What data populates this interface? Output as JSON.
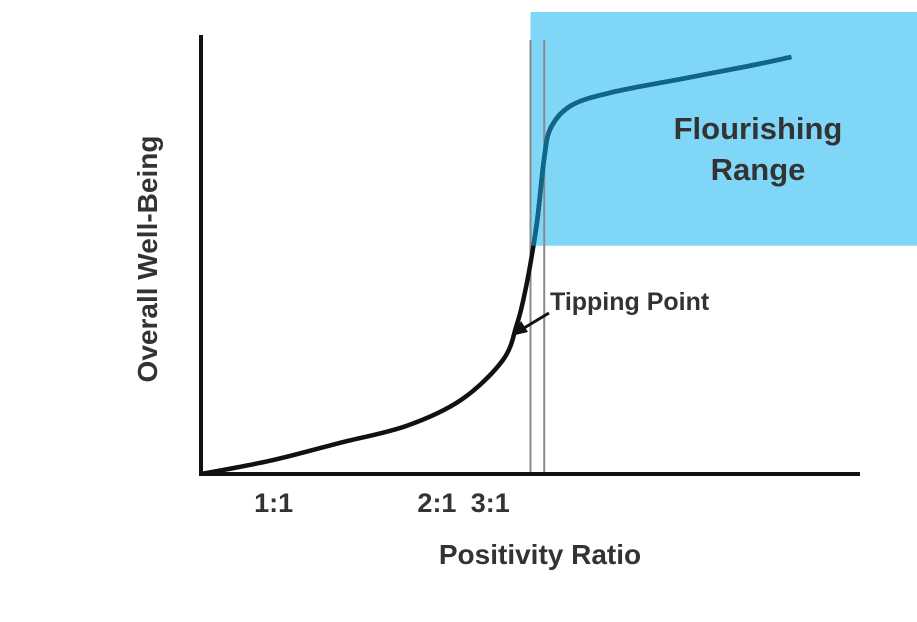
{
  "chart_data": {
    "type": "line",
    "title": "",
    "xlabel": "Positivity Ratio",
    "ylabel": "Overall Well-Being",
    "x_ticks": [
      "1:1",
      "2:1",
      "3:1"
    ],
    "xlim": [
      0.5,
      5.3
    ],
    "ylim": [
      0,
      1
    ],
    "grid": false,
    "series": [
      {
        "color": "#0f6688",
        "x": [
          0.5,
          1.0,
          1.5,
          2.0,
          2.4,
          2.7,
          2.8,
          2.85,
          2.9,
          2.95,
          3.0,
          3.05,
          3.2,
          3.5,
          4.0,
          4.5,
          4.8
        ],
        "y": [
          0.0,
          0.03,
          0.07,
          0.11,
          0.17,
          0.26,
          0.34,
          0.4,
          0.48,
          0.58,
          0.72,
          0.79,
          0.84,
          0.87,
          0.9,
          0.93,
          0.95
        ]
      }
    ],
    "vertical_lines": [
      2.9,
      3.0
    ],
    "region": {
      "label": "Flourishing Range",
      "x_from": 2.9,
      "y_from": 0.52,
      "color": "#7fd6f7"
    },
    "annotation": {
      "text": "Tipping Point",
      "x": 3.0,
      "y": 0.3
    }
  }
}
